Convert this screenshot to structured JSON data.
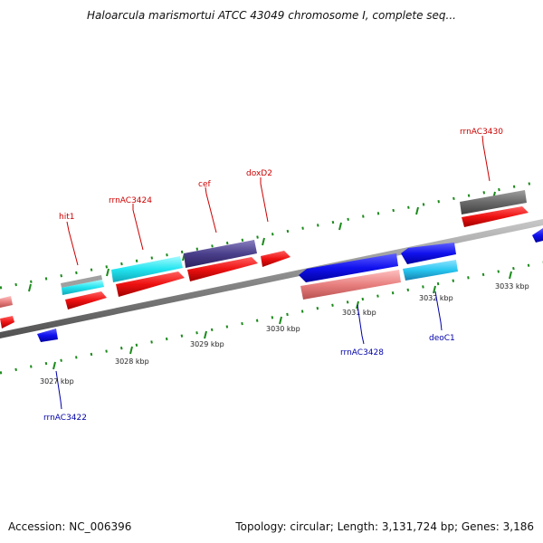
{
  "title": "Haloarcula marismortui ATCC 43049 chromosome I, complete seq...",
  "footer": {
    "accession": "Accession: NC_006396",
    "summary": "Topology: circular; Length: 3,131,724 bp; Genes: 3,186"
  },
  "ticks": [
    {
      "label": "3027 kbp"
    },
    {
      "label": "3028 kbp"
    },
    {
      "label": "3029 kbp"
    },
    {
      "label": "3030 kbp"
    },
    {
      "label": "3031 kbp"
    },
    {
      "label": "3032 kbp"
    },
    {
      "label": "3033 kbp"
    }
  ],
  "genes_forward": [
    {
      "label": "hit1",
      "color": "#cc0000"
    },
    {
      "label": "rrnAC3424",
      "color": "#cc0000"
    },
    {
      "label": "cef",
      "color": "#cc0000"
    },
    {
      "label": "doxD2",
      "color": "#cc0000"
    },
    {
      "label": "rrnAC3430",
      "color": "#cc0000"
    }
  ],
  "genes_reverse": [
    {
      "label": "rrnAC3422",
      "color": "#0000aa"
    },
    {
      "label": "rrnAC3428",
      "color": "#0000aa"
    },
    {
      "label": "deoC1",
      "color": "#0000aa"
    }
  ],
  "colors": {
    "backbone": "#8a8a8a",
    "cds_forward": "#ee1111",
    "cds_reverse": "#1111ee",
    "cyan": "#22e5f0",
    "light_blue": "#28c6f0",
    "dark_purple": "#4a3f8a",
    "pink": "#e88080",
    "gray": "#6a6a6a",
    "tick": "#1a8a1a"
  }
}
